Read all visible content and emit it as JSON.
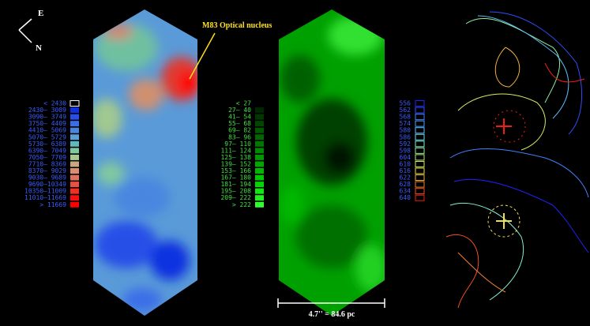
{
  "compass": {
    "east": "E",
    "north": "N"
  },
  "annotation": "M83 Optical nucleus",
  "scale_bar": "4.7'' = 84.6 pc",
  "legends": [
    {
      "text_color": "#3a5cff",
      "entries": [
        {
          "label": "<  2430",
          "color": "#000000"
        },
        {
          "label": "2430– 3089",
          "color": "#1030e0"
        },
        {
          "label": "3090– 3749",
          "color": "#2850e8"
        },
        {
          "label": "3750– 4409",
          "color": "#3a6ee8"
        },
        {
          "label": "4410– 5069",
          "color": "#4a86e0"
        },
        {
          "label": "5070– 5729",
          "color": "#5aa0d8"
        },
        {
          "label": "5730– 6389",
          "color": "#60b8c0"
        },
        {
          "label": "6390– 7049",
          "color": "#80c8a0"
        },
        {
          "label": "7050– 7709",
          "color": "#a8c890"
        },
        {
          "label": "7710– 8369",
          "color": "#c8a880"
        },
        {
          "label": "8370– 9029",
          "color": "#d89070"
        },
        {
          "label": "9030– 9689",
          "color": "#e07060"
        },
        {
          "label": "9690–10349",
          "color": "#e85040"
        },
        {
          "label": "10350–11009",
          "color": "#f03020"
        },
        {
          "label": "11010–11669",
          "color": "#f81010"
        },
        {
          "label": ">  11669",
          "color": "#ff0000"
        }
      ]
    },
    {
      "text_color": "#40e040",
      "entries": [
        {
          "label": "<    27",
          "color": "#000000"
        },
        {
          "label": "27–   40",
          "color": "#002800"
        },
        {
          "label": "41–   54",
          "color": "#003800"
        },
        {
          "label": "55–   68",
          "color": "#004800"
        },
        {
          "label": "69–   82",
          "color": "#005800"
        },
        {
          "label": "83–   96",
          "color": "#006800"
        },
        {
          "label": "97–  110",
          "color": "#007800"
        },
        {
          "label": "111–  124",
          "color": "#008800"
        },
        {
          "label": "125–  138",
          "color": "#009800"
        },
        {
          "label": "139–  152",
          "color": "#00a800"
        },
        {
          "label": "153–  166",
          "color": "#00b800"
        },
        {
          "label": "167–  180",
          "color": "#00c800"
        },
        {
          "label": "181–  194",
          "color": "#00d800"
        },
        {
          "label": "195–  208",
          "color": "#10e810"
        },
        {
          "label": "209–  222",
          "color": "#20f020"
        },
        {
          "label": ">   222",
          "color": "#30ff30"
        }
      ]
    },
    {
      "text_color": "#3a5cff",
      "entries": [
        {
          "label": "556",
          "color": "#2020ff"
        },
        {
          "label": "562",
          "color": "#3050ff"
        },
        {
          "label": "568",
          "color": "#4080ff"
        },
        {
          "label": "574",
          "color": "#50a0ff"
        },
        {
          "label": "580",
          "color": "#60c0ff"
        },
        {
          "label": "586",
          "color": "#70e0f0"
        },
        {
          "label": "592",
          "color": "#80f0d0"
        },
        {
          "label": "598",
          "color": "#90f0a0"
        },
        {
          "label": "604",
          "color": "#b0f080"
        },
        {
          "label": "610",
          "color": "#d0f060"
        },
        {
          "label": "616",
          "color": "#f0e050"
        },
        {
          "label": "622",
          "color": "#f0b040"
        },
        {
          "label": "628",
          "color": "#f08030"
        },
        {
          "label": "634",
          "color": "#f05020"
        },
        {
          "label": "640",
          "color": "#f02010"
        }
      ]
    }
  ]
}
